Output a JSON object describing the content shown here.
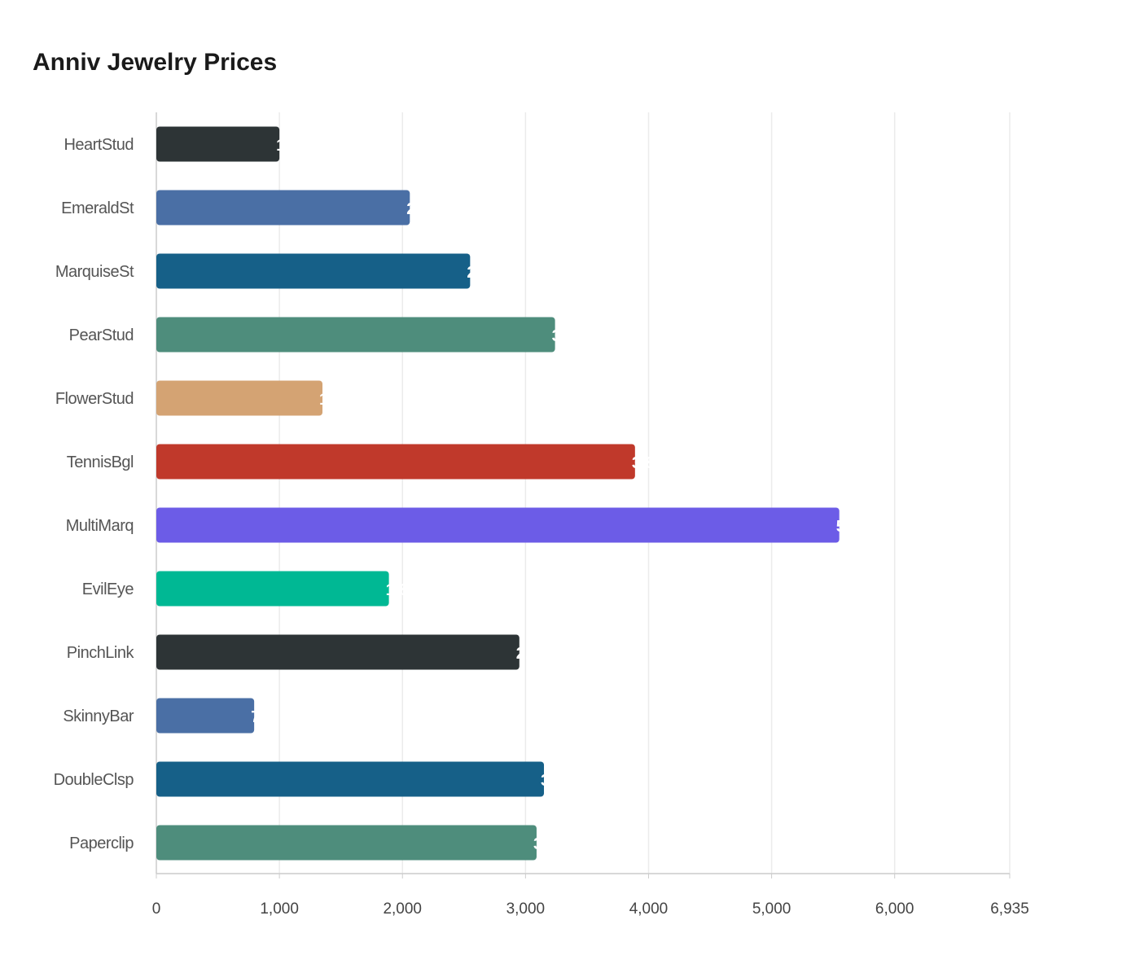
{
  "chart_data": {
    "type": "bar",
    "orientation": "horizontal",
    "title": "Anniv Jewelry Prices",
    "xlabel": "",
    "ylabel": "",
    "xlim": [
      0,
      6935
    ],
    "x_ticks": [
      "0",
      "1,000",
      "2,000",
      "3,000",
      "4,000",
      "5,000",
      "6,000",
      "6,935"
    ],
    "x_tick_values": [
      0,
      1000,
      2000,
      3000,
      4000,
      5000,
      6000,
      6935
    ],
    "grid": true,
    "categories": [
      "HeartStud",
      "EmeraldSt",
      "MarquiseSt",
      "PearStud",
      "FlowerStud",
      "TennisBgl",
      "MultiMarq",
      "EvilEye",
      "PinchLink",
      "SkinnyBar",
      "DoubleClsp",
      "Paperclip"
    ],
    "values": [
      1000,
      2060,
      2550,
      3240,
      1350,
      3890,
      5550,
      1890,
      2950,
      795,
      3150,
      3090
    ],
    "colors": [
      "#2d3436",
      "#4a6fa5",
      "#166088",
      "#4e8d7c",
      "#d4a373",
      "#c0392b",
      "#6c5ce7",
      "#00b894",
      "#2d3436",
      "#4a6fa5",
      "#166088",
      "#4e8d7c"
    ]
  }
}
